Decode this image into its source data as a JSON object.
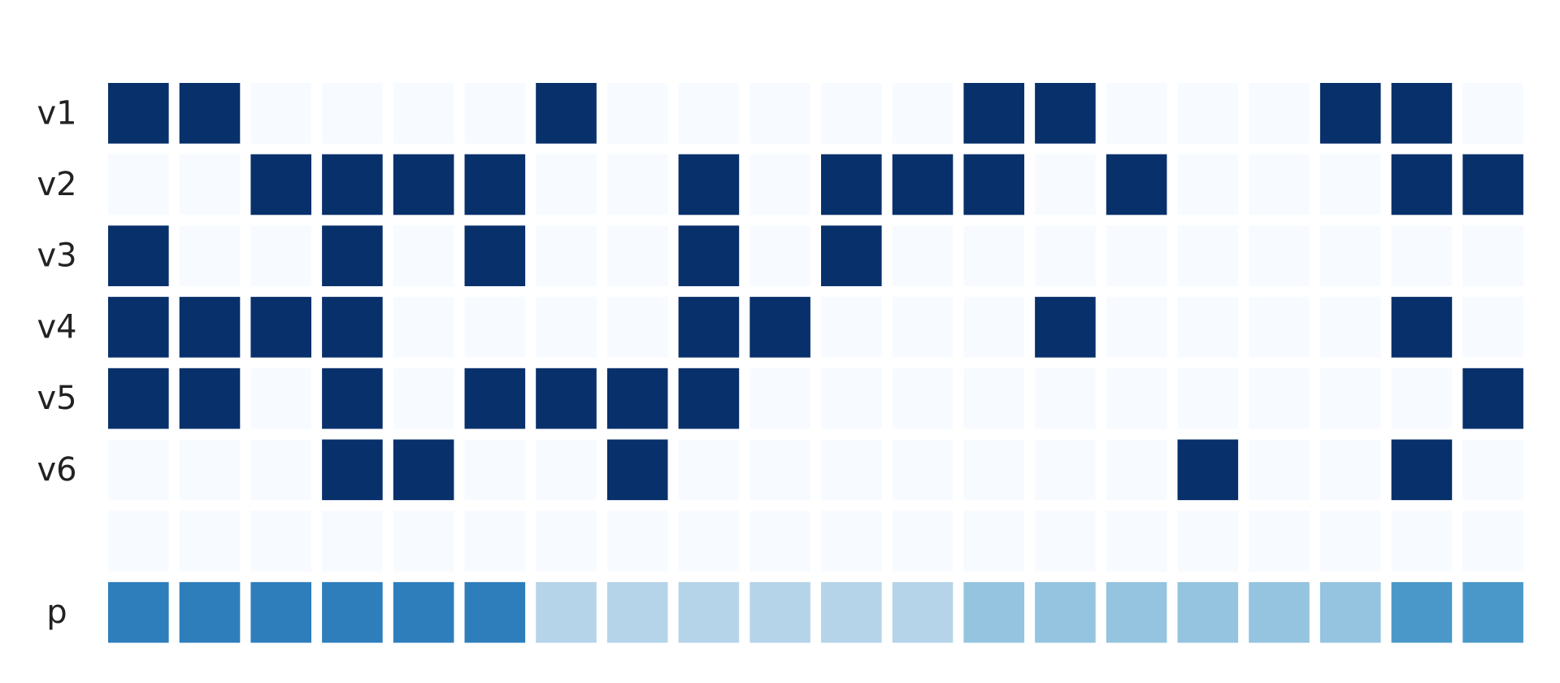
{
  "chart_data": {
    "type": "heatmap",
    "row_labels": [
      "v1",
      "v2",
      "v3",
      "v4",
      "v5",
      "v6",
      "",
      "p"
    ],
    "column_count": 20,
    "rows": [
      [
        1,
        1,
        0,
        0,
        0,
        0,
        1,
        0,
        0,
        0,
        0,
        0,
        1,
        1,
        0,
        0,
        0,
        1,
        1,
        0
      ],
      [
        0,
        0,
        1,
        1,
        1,
        1,
        0,
        0,
        1,
        0,
        1,
        1,
        1,
        0,
        1,
        0,
        0,
        0,
        1,
        1
      ],
      [
        1,
        0,
        0,
        1,
        0,
        1,
        0,
        0,
        1,
        0,
        1,
        0,
        0,
        0,
        0,
        0,
        0,
        0,
        0,
        0
      ],
      [
        1,
        1,
        1,
        1,
        0,
        0,
        0,
        0,
        1,
        1,
        0,
        0,
        0,
        1,
        0,
        0,
        0,
        0,
        1,
        0
      ],
      [
        1,
        1,
        0,
        1,
        0,
        1,
        1,
        1,
        1,
        0,
        0,
        0,
        0,
        0,
        0,
        0,
        0,
        0,
        0,
        1
      ],
      [
        0,
        0,
        0,
        1,
        1,
        0,
        0,
        1,
        0,
        0,
        0,
        0,
        0,
        0,
        0,
        1,
        0,
        0,
        1,
        0
      ],
      [
        0,
        0,
        0,
        0,
        0,
        0,
        0,
        0,
        0,
        0,
        0,
        0,
        0,
        0,
        0,
        0,
        0,
        0,
        0,
        0
      ],
      [
        0.7,
        0.7,
        0.7,
        0.7,
        0.7,
        0.7,
        0.3,
        0.3,
        0.3,
        0.3,
        0.3,
        0.3,
        0.4,
        0.4,
        0.4,
        0.4,
        0.4,
        0.4,
        0.6,
        0.6
      ]
    ],
    "value_range": [
      0,
      1
    ],
    "colormap": "Blues",
    "colors": {
      "min": "#f7fbff",
      "max": "#08306b"
    },
    "grid": false,
    "legend": "none"
  }
}
